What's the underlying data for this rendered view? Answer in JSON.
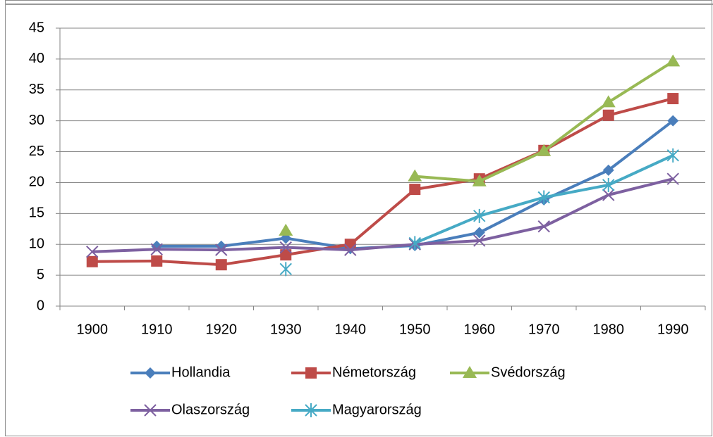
{
  "chart_data": {
    "type": "line",
    "categories": [
      "1900",
      "1910",
      "1920",
      "1930",
      "1940",
      "1950",
      "1960",
      "1970",
      "1980",
      "1990"
    ],
    "series": [
      {
        "name": "Hollandia",
        "color": "#4a7ebb",
        "marker": "diamond",
        "values": [
          null,
          9.7,
          9.7,
          11,
          9.3,
          9.8,
          11.9,
          17.2,
          22,
          30
        ]
      },
      {
        "name": "Németország",
        "color": "#be4b48",
        "marker": "square",
        "values": [
          7.2,
          7.3,
          6.7,
          8.3,
          10,
          18.9,
          20.6,
          25.2,
          30.9,
          33.6
        ]
      },
      {
        "name": "Svédország",
        "color": "#98b954",
        "marker": "triangle",
        "values": [
          null,
          null,
          null,
          12.2,
          null,
          21,
          20.2,
          25.1,
          33,
          39.6
        ]
      },
      {
        "name": "Olaszország",
        "color": "#7d60a0",
        "marker": "x",
        "values": [
          8.8,
          9.2,
          9.1,
          9.5,
          9.1,
          10,
          10.6,
          12.9,
          18,
          20.6
        ]
      },
      {
        "name": "Magyarország",
        "color": "#46aac5",
        "marker": "star",
        "values": [
          null,
          null,
          null,
          6,
          null,
          10.2,
          14.6,
          17.6,
          19.6,
          24.4
        ]
      }
    ],
    "ylim": [
      0,
      45
    ],
    "yticks": [
      0,
      5,
      10,
      15,
      20,
      25,
      30,
      35,
      40,
      45
    ],
    "grid": true,
    "legend": "bottom"
  }
}
